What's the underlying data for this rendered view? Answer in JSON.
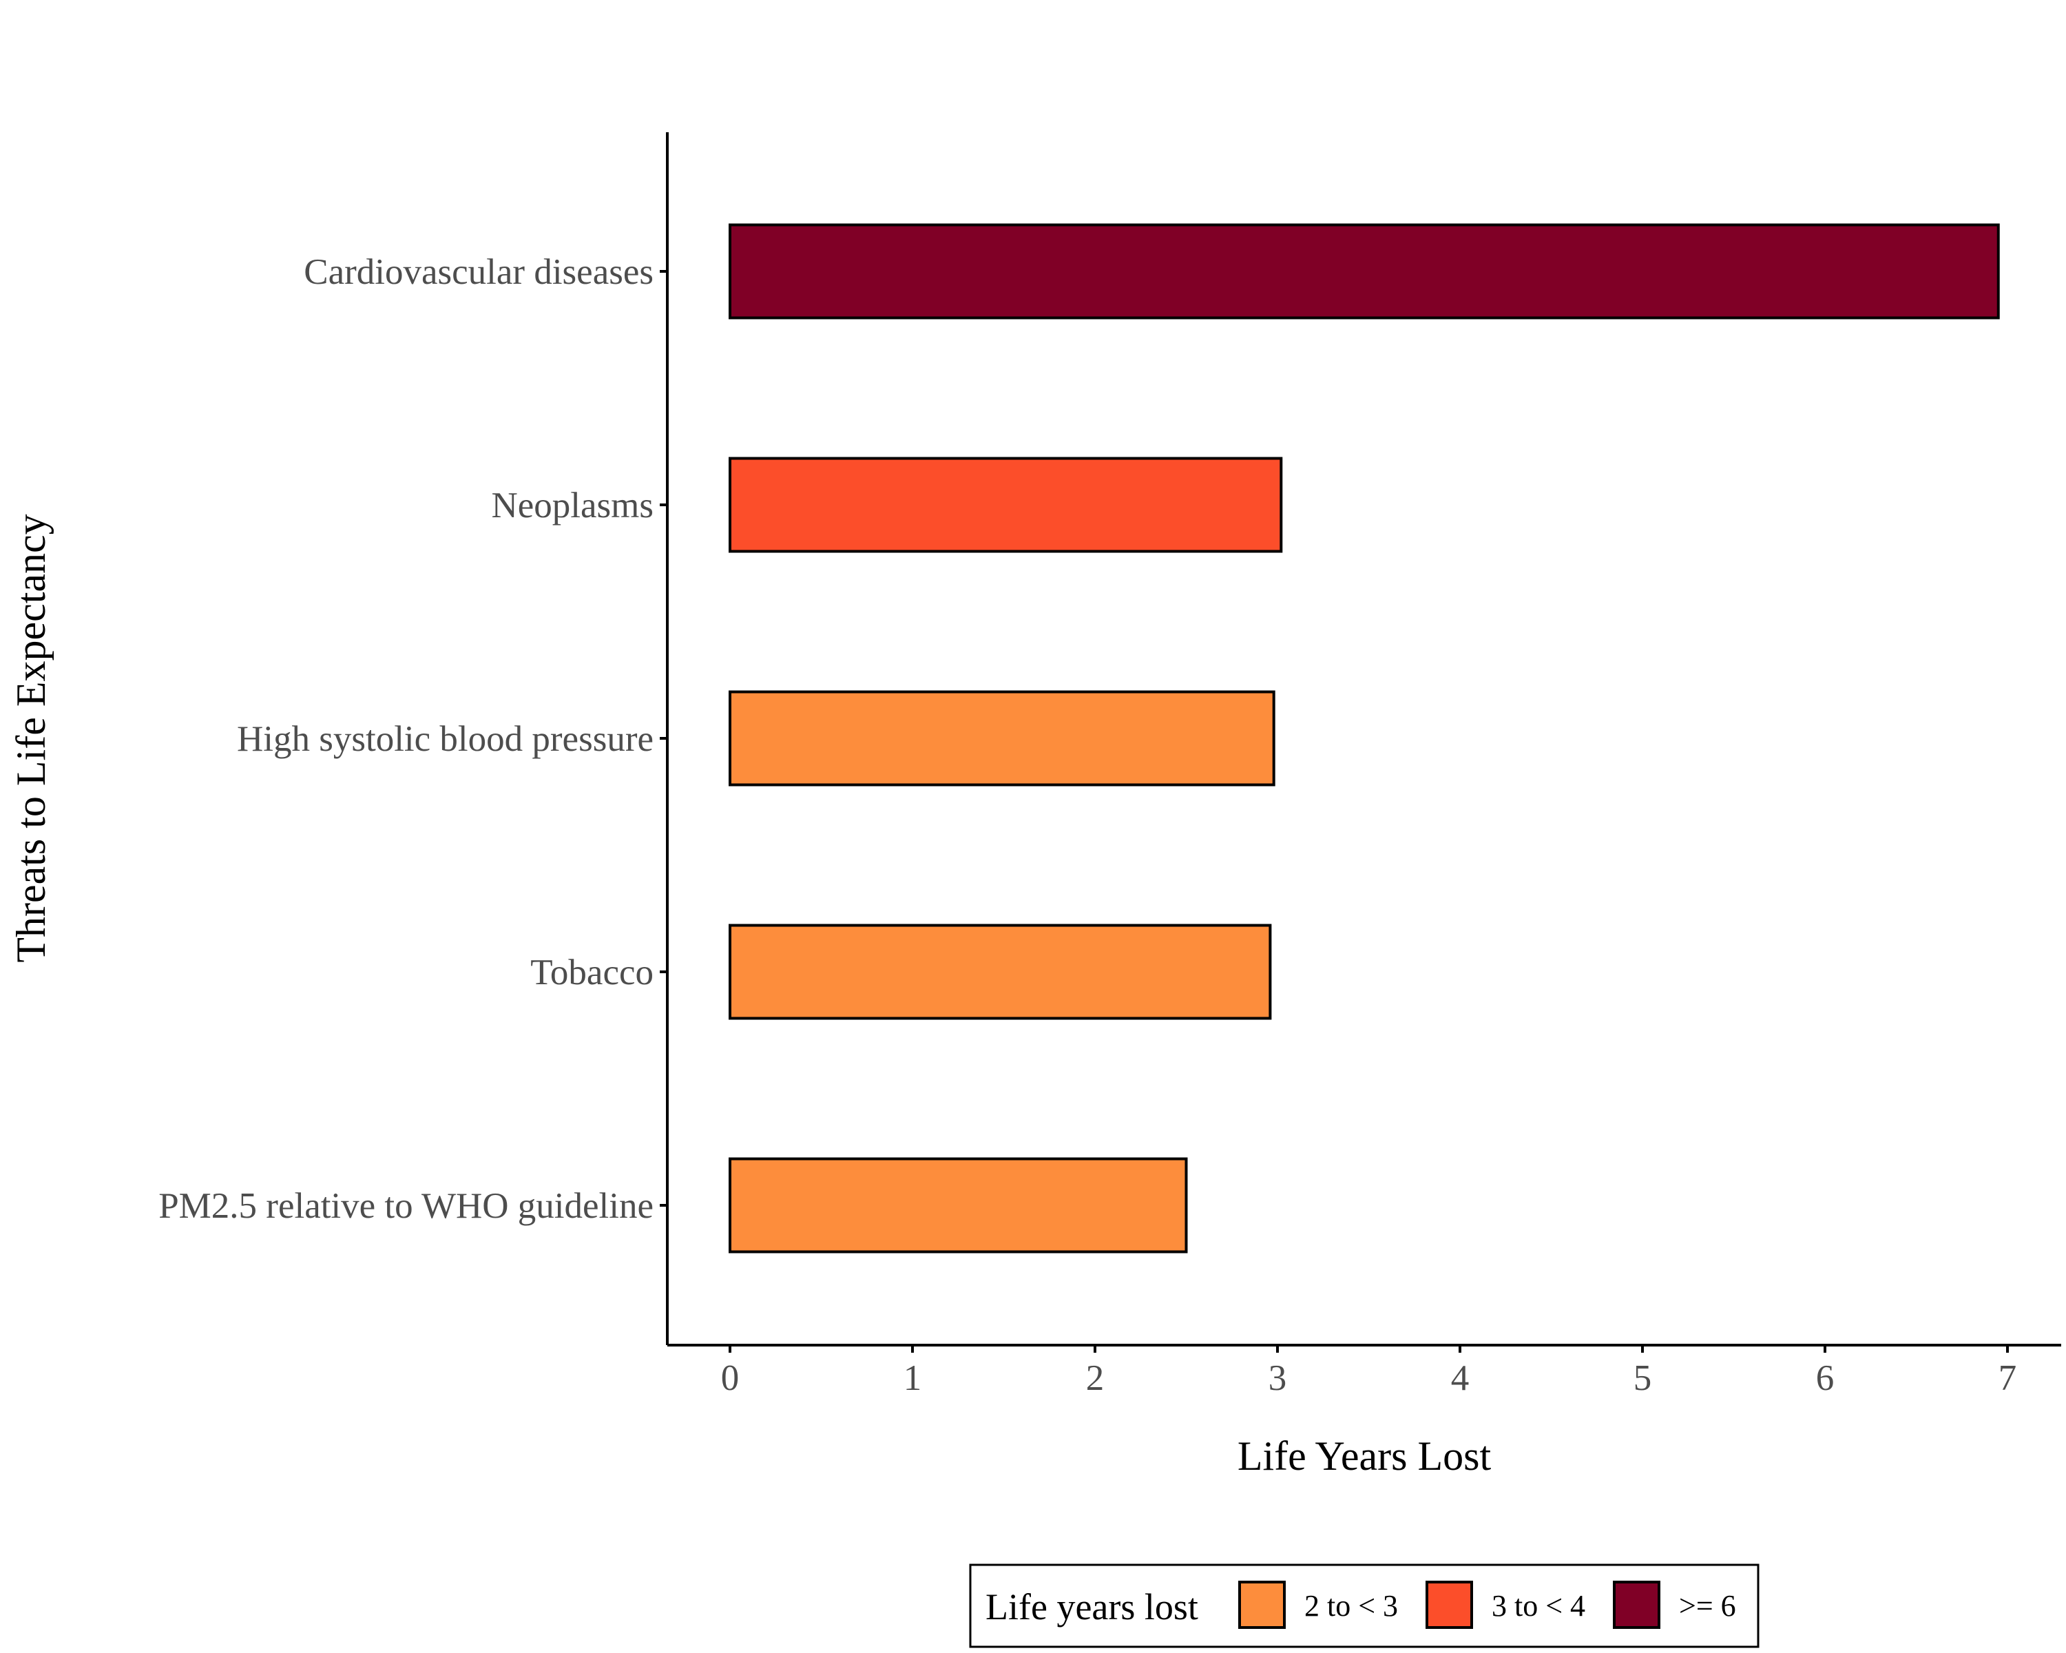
{
  "chart_data": {
    "type": "bar",
    "orientation": "horizontal",
    "title": "",
    "xlabel": "Life Years Lost",
    "ylabel": "Threats to Life Expectancy",
    "xlim": [
      -0.33,
      7.3
    ],
    "x_ticks": [
      "0",
      "1",
      "2",
      "3",
      "4",
      "5",
      "6",
      "7"
    ],
    "grid": false,
    "categories": [
      "Cardiovascular diseases",
      "Neoplasms",
      "High systolic blood pressure",
      "Tobacco",
      "PM2.5 relative to WHO guideline"
    ],
    "values": [
      6.95,
      3.02,
      2.98,
      2.96,
      2.5
    ],
    "bins": [
      "6+",
      "3-4",
      "2-3",
      "2-3",
      "2-3"
    ],
    "legend": {
      "title": "Life years lost",
      "position": "bottom",
      "items": [
        {
          "key": "2-3",
          "label": "2 to < 3",
          "color": "#fd8d3c"
        },
        {
          "key": "3-4",
          "label": "3 to < 4",
          "color": "#fc4e2a"
        },
        {
          "key": "6+",
          "label": ">= 6",
          "color": "#800026"
        }
      ]
    },
    "colors": {
      "axis": "#000000",
      "tick_label": "#4d4d4d",
      "bar_outline": "#000000"
    }
  }
}
